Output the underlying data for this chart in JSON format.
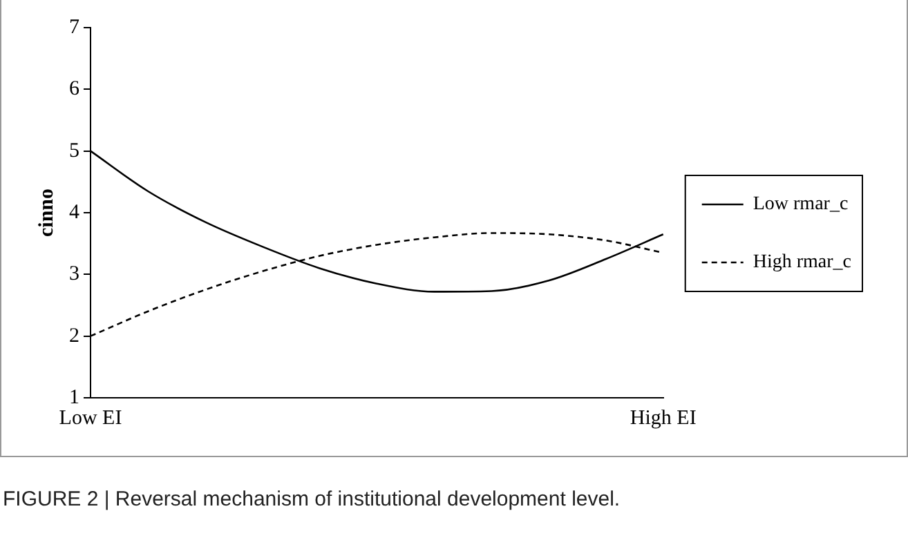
{
  "chart_data": {
    "type": "line",
    "ylabel": "cinno",
    "categories": [
      "Low EI",
      null,
      null,
      null,
      null,
      null,
      null,
      null,
      null,
      null,
      "High EI"
    ],
    "series": [
      {
        "name": "Low rmar_c",
        "color": "#000000",
        "line_style": "solid",
        "values": [
          5.0,
          4.35,
          3.85,
          3.45,
          3.1,
          2.85,
          2.72,
          2.73,
          2.9,
          3.25,
          3.65
        ]
      },
      {
        "name": "High rmar_c",
        "color": "#000000",
        "line_style": "dashed",
        "values": [
          2.0,
          2.4,
          2.75,
          3.05,
          3.3,
          3.48,
          3.6,
          3.67,
          3.65,
          3.55,
          3.35
        ]
      }
    ],
    "ylim": [
      1,
      7
    ],
    "yticks": [
      1,
      2,
      3,
      4,
      5,
      6,
      7
    ],
    "grid": false,
    "legend": "right",
    "marker": "none",
    "annotations": [
      "FIGURE 2 | Reversal mechanism of institutional development level."
    ]
  }
}
